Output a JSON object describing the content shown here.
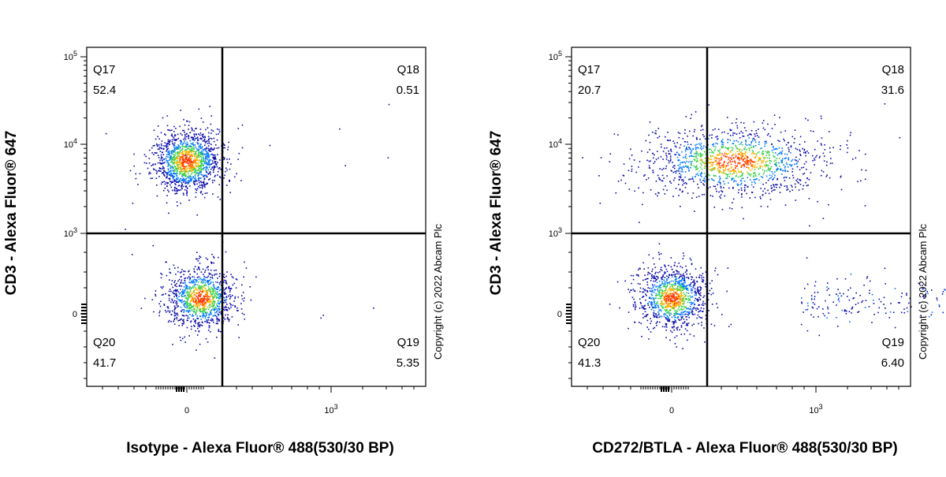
{
  "chart_data": [
    {
      "type": "scatter",
      "xlabel": "Isotype - Alexa Fluor® 488(530/30 BP)",
      "ylabel": "CD3 - Alexa Fluor® 647",
      "x_scale": "biexponential",
      "y_scale": "biexponential",
      "x_ticks": [
        "0",
        "10^3"
      ],
      "y_ticks": [
        "10^5",
        "10^4",
        "10^3",
        "0"
      ],
      "copyright": "Copyright (c) 2022 Abcam Plc",
      "quadrants": [
        {
          "name": "Q17",
          "value": "52.4",
          "position": "top-left"
        },
        {
          "name": "Q18",
          "value": "0.51",
          "position": "top-right"
        },
        {
          "name": "Q20",
          "value": "41.7",
          "position": "bottom-left"
        },
        {
          "name": "Q19",
          "value": "5.35",
          "position": "bottom-right"
        }
      ],
      "populations": [
        {
          "x_center": 0,
          "y_center": 6500,
          "frac": 0.524,
          "spread": "tight"
        },
        {
          "x_center": 80,
          "y_center": 120,
          "frac": 0.417,
          "spread": "tight"
        }
      ]
    },
    {
      "type": "scatter",
      "xlabel": "CD272/BTLA - Alexa Fluor® 488(530/30 BP)",
      "ylabel": "CD3 - Alexa Fluor® 647",
      "x_scale": "biexponential",
      "y_scale": "biexponential",
      "x_ticks": [
        "0",
        "10^3"
      ],
      "y_ticks": [
        "10^5",
        "10^4",
        "10^3",
        "0"
      ],
      "copyright": "Copyright (c) 2022 Abcam Plc",
      "quadrants": [
        {
          "name": "Q17",
          "value": "20.7",
          "position": "top-left"
        },
        {
          "name": "Q18",
          "value": "31.6",
          "position": "top-right"
        },
        {
          "name": "Q20",
          "value": "41.3",
          "position": "bottom-left"
        },
        {
          "name": "Q19",
          "value": "6.40",
          "position": "bottom-right"
        }
      ],
      "populations": [
        {
          "x_center": 300,
          "y_center": 6500,
          "frac": 0.52,
          "spread": "wide"
        },
        {
          "x_center": 0,
          "y_center": 120,
          "frac": 0.413,
          "spread": "tight"
        },
        {
          "x_center": 900,
          "y_center": 100,
          "frac": 0.064,
          "spread": "tail"
        }
      ]
    }
  ]
}
